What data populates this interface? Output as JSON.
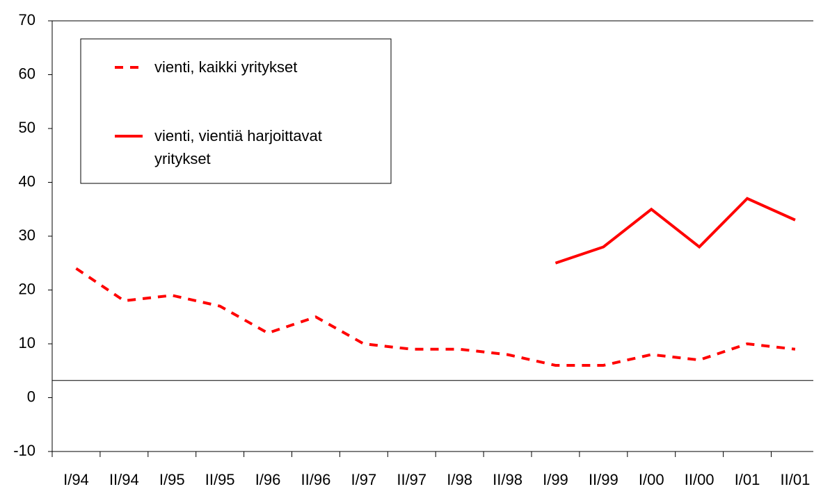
{
  "chart_data": {
    "type": "line",
    "categories": [
      "I/94",
      "II/94",
      "I/95",
      "II/95",
      "I/96",
      "II/96",
      "I/97",
      "II/97",
      "I/98",
      "II/98",
      "I/99",
      "II/99",
      "I/00",
      "II/00",
      "I/01",
      "II/01"
    ],
    "series": [
      {
        "name": "vienti, kaikki yritykset",
        "color": "#ff0000",
        "dash": true,
        "values": [
          24,
          18,
          19,
          17,
          12,
          15,
          10,
          9,
          9,
          8,
          6,
          6,
          8,
          7,
          10,
          9
        ]
      },
      {
        "name": "vienti, vientiä harjoittavat yritykset",
        "color": "#ff0000",
        "dash": false,
        "values": [
          null,
          null,
          null,
          null,
          null,
          null,
          null,
          null,
          null,
          null,
          25,
          28,
          35,
          28,
          37,
          33
        ]
      }
    ],
    "ylim": [
      -10,
      70
    ],
    "yticks": [
      -10,
      0,
      10,
      20,
      30,
      40,
      50,
      60,
      70
    ],
    "reference_line": 3.2,
    "grid": false
  }
}
